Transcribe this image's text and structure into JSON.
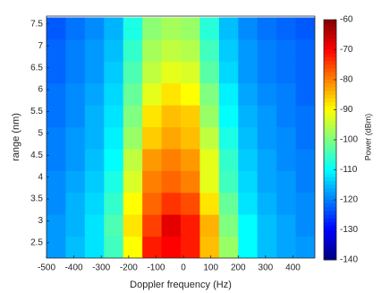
{
  "chart_data": {
    "type": "heatmap",
    "xlabel": "Doppler frequency (Hz)",
    "ylabel": "range (nm)",
    "colorbar_label": "Power (dBm)",
    "colormap": "jet",
    "x": [
      -465,
      -395,
      -325,
      -255,
      -185,
      -115,
      -45,
      25,
      95,
      165,
      235,
      305,
      375,
      445
    ],
    "y": [
      2.4,
      2.9,
      3.4,
      3.9,
      4.4,
      4.9,
      5.4,
      5.9,
      6.4,
      6.9,
      7.4
    ],
    "values": [
      [
        -118,
        -115,
        -112,
        -105,
        -90,
        -72,
        -70,
        -72,
        -85,
        -98,
        -110,
        -115,
        -117,
        -118
      ],
      [
        -118,
        -116,
        -112,
        -104,
        -88,
        -75,
        -68,
        -72,
        -84,
        -100,
        -110,
        -115,
        -117,
        -119
      ],
      [
        -119,
        -116,
        -113,
        -106,
        -90,
        -78,
        -74,
        -76,
        -88,
        -102,
        -112,
        -116,
        -118,
        -119
      ],
      [
        -119,
        -117,
        -114,
        -108,
        -93,
        -80,
        -78,
        -80,
        -92,
        -105,
        -113,
        -117,
        -118,
        -120
      ],
      [
        -120,
        -118,
        -115,
        -110,
        -95,
        -82,
        -80,
        -82,
        -92,
        -106,
        -114,
        -117,
        -119,
        -120
      ],
      [
        -120,
        -118,
        -116,
        -111,
        -98,
        -86,
        -83,
        -85,
        -95,
        -108,
        -115,
        -118,
        -119,
        -121
      ],
      [
        -121,
        -119,
        -116,
        -112,
        -100,
        -88,
        -85,
        -86,
        -98,
        -110,
        -116,
        -118,
        -120,
        -121
      ],
      [
        -121,
        -119,
        -117,
        -113,
        -102,
        -92,
        -88,
        -90,
        -100,
        -111,
        -117,
        -119,
        -120,
        -122
      ],
      [
        -122,
        -120,
        -118,
        -114,
        -104,
        -95,
        -92,
        -93,
        -103,
        -113,
        -118,
        -120,
        -121,
        -122
      ],
      [
        -122,
        -120,
        -118,
        -115,
        -106,
        -97,
        -95,
        -96,
        -105,
        -114,
        -118,
        -120,
        -121,
        -122
      ],
      [
        -123,
        -121,
        -119,
        -116,
        -108,
        -99,
        -97,
        -98,
        -107,
        -115,
        -119,
        -121,
        -122,
        -123
      ]
    ],
    "xlim": [
      -500,
      480
    ],
    "ylim": [
      2.15,
      7.68
    ],
    "xticks": [
      -500,
      -400,
      -300,
      -200,
      -100,
      0,
      100,
      200,
      300,
      400
    ],
    "yticks": [
      2.5,
      3,
      3.5,
      4,
      4.5,
      5,
      5.5,
      6,
      6.5,
      7,
      7.5
    ],
    "clim": [
      -140,
      -60
    ],
    "cticks": [
      -60,
      -70,
      -80,
      -90,
      -100,
      -110,
      -120,
      -130,
      -140
    ]
  }
}
